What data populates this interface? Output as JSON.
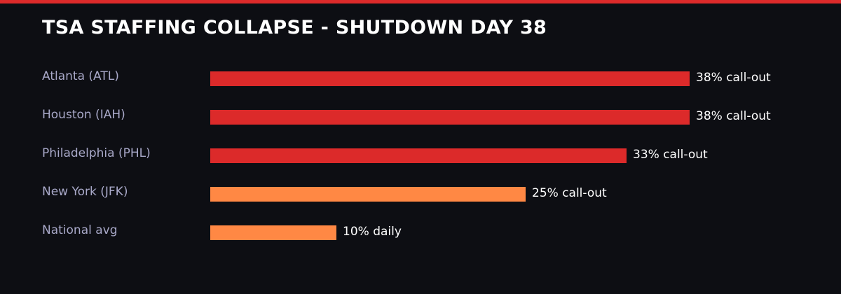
{
  "colors": {
    "background": "#0d0e13",
    "accent_bar": "#dc2a2a",
    "severe": "#dc2a2a",
    "moderate": "#ff8844",
    "label": "#a9a9c9",
    "value": "#ffffff"
  },
  "header": {
    "title": "TSA STAFFING COLLAPSE - SHUTDOWN DAY 38"
  },
  "rows": [
    {
      "label": "Atlanta (ATL)",
      "value": 38,
      "value_label": "38% call-out",
      "color": "#dc2a2a"
    },
    {
      "label": "Houston (IAH)",
      "value": 38,
      "value_label": "38% call-out",
      "color": "#dc2a2a"
    },
    {
      "label": "Philadelphia (PHL)",
      "value": 33,
      "value_label": "33% call-out",
      "color": "#dc2a2a"
    },
    {
      "label": "New York (JFK)",
      "value": 25,
      "value_label": "25% call-out",
      "color": "#ff8844"
    },
    {
      "label": "National avg",
      "value": 10,
      "value_label": "10% daily",
      "color": "#ff8844"
    }
  ],
  "chart_data": {
    "type": "bar",
    "orientation": "horizontal",
    "title": "TSA STAFFING COLLAPSE - SHUTDOWN DAY 38",
    "categories": [
      "Atlanta (ATL)",
      "Houston (IAH)",
      "Philadelphia (PHL)",
      "New York (JFK)",
      "National avg"
    ],
    "values": [
      38,
      38,
      33,
      25,
      10
    ],
    "data_labels": [
      "38% call-out",
      "38% call-out",
      "33% call-out",
      "25% call-out",
      "10% daily"
    ],
    "bar_colors": [
      "#dc2a2a",
      "#dc2a2a",
      "#dc2a2a",
      "#ff8844",
      "#ff8844"
    ],
    "xlabel": "",
    "ylabel": "",
    "unit": "%",
    "grid": false,
    "legend": null
  }
}
